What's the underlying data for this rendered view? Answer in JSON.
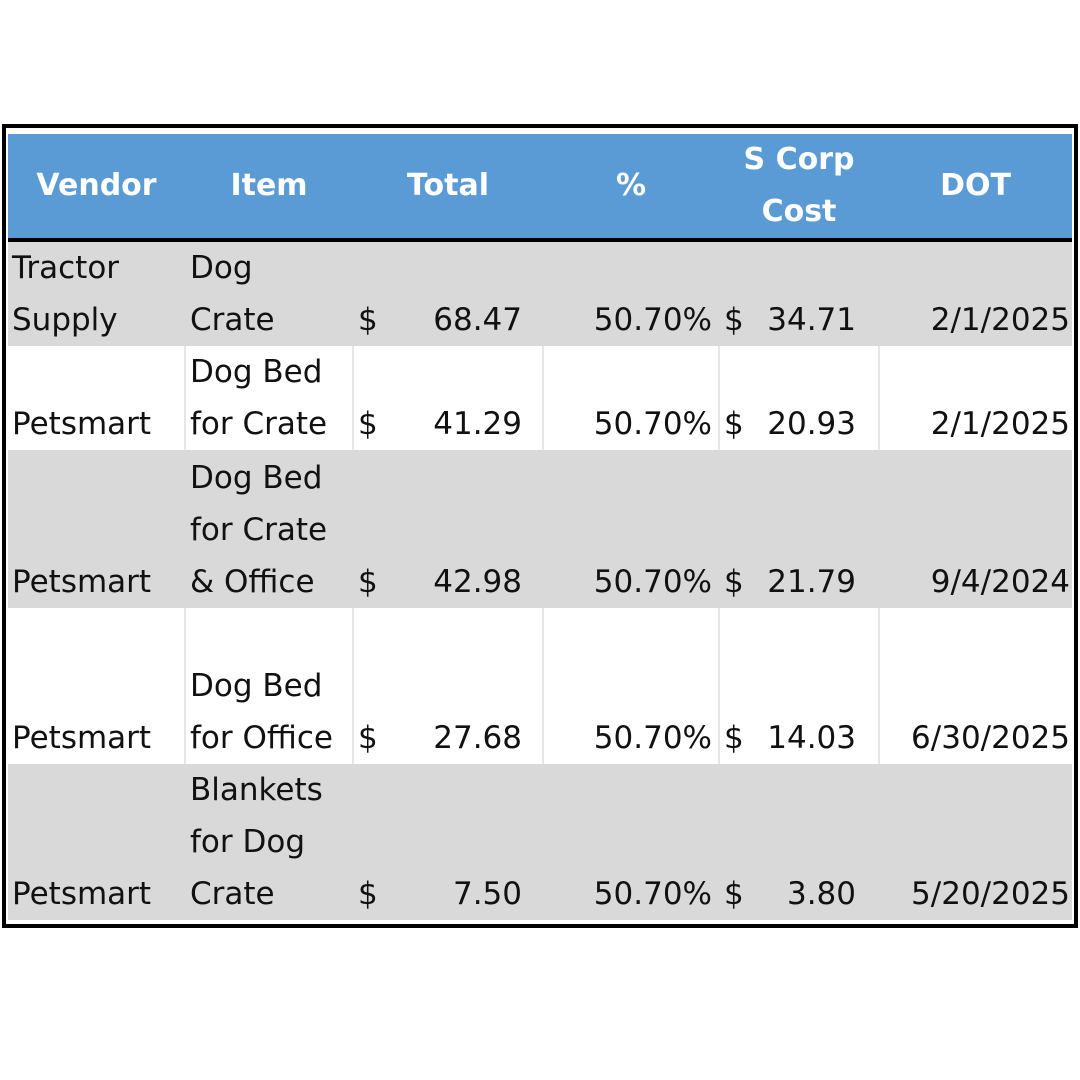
{
  "table": {
    "headers": {
      "vendor": "Vendor",
      "item": "Item",
      "total": "Total",
      "pct": "%",
      "scorp_line1": "S Corp",
      "scorp_line2": "Cost",
      "dot": "DOT"
    },
    "currency_symbol": "$",
    "rows": [
      {
        "vendor_line1": "Tractor",
        "vendor_line2": "Supply",
        "item_lines": [
          "Dog",
          "Crate"
        ],
        "total": "68.47",
        "pct": "50.70%",
        "scorp": "34.71",
        "dot": "2/1/2025"
      },
      {
        "vendor_line1": "",
        "vendor_line2": "Petsmart",
        "item_lines": [
          "Dog Bed",
          "for Crate"
        ],
        "total": "41.29",
        "pct": "50.70%",
        "scorp": "20.93",
        "dot": "2/1/2025"
      },
      {
        "vendor_line1": "",
        "vendor_line2": "Petsmart",
        "item_lines": [
          "Dog Bed",
          "for Crate",
          "& Office"
        ],
        "total": "42.98",
        "pct": "50.70%",
        "scorp": "21.79",
        "dot": "9/4/2024"
      },
      {
        "vendor_line1": "",
        "vendor_line2": "Petsmart",
        "item_lines": [
          "Dog Bed",
          "for Office"
        ],
        "total": "27.68",
        "pct": "50.70%",
        "scorp": "14.03",
        "dot": "6/30/2025"
      },
      {
        "vendor_line1": "",
        "vendor_line2": "Petsmart",
        "item_lines": [
          "Blankets",
          "for Dog",
          "Crate"
        ],
        "total": "7.50",
        "pct": "50.70%",
        "scorp": "3.80",
        "dot": "5/20/2025"
      }
    ]
  },
  "colors": {
    "header_bg": "#5b9bd5",
    "header_text": "#ffffff",
    "row_shaded": "#d9d9d9",
    "row_plain": "#ffffff",
    "border": "#000000"
  }
}
